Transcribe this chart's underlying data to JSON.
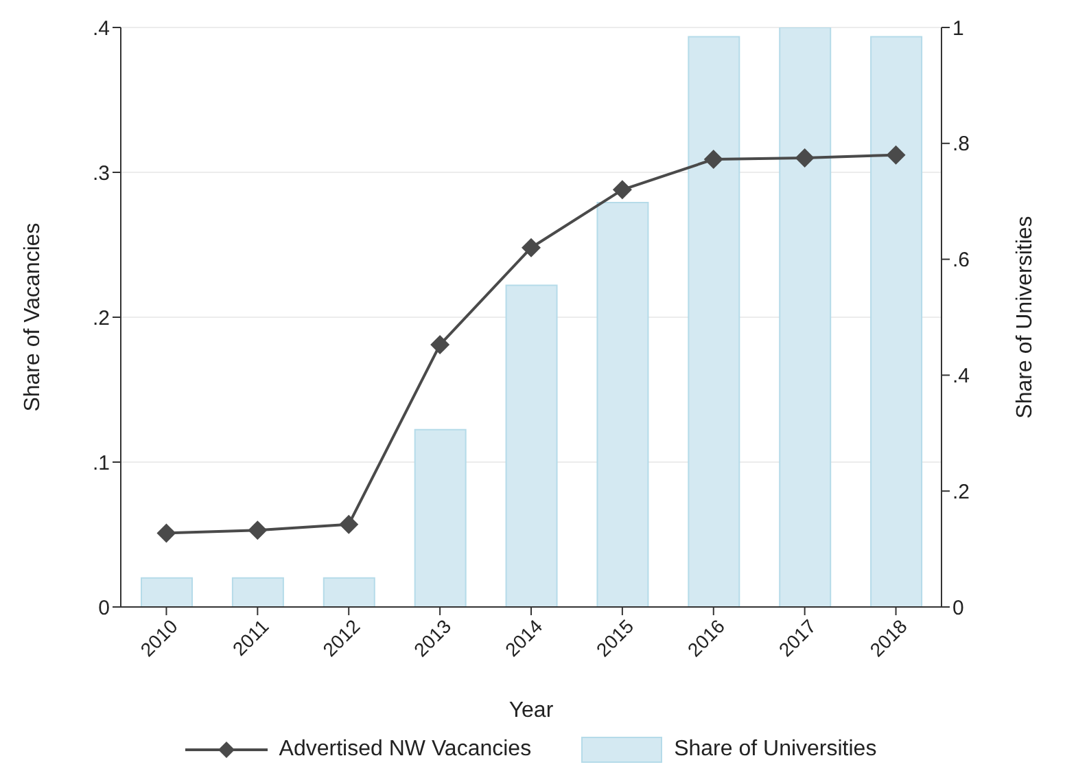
{
  "chart_data": {
    "type": "line",
    "xlabel": "Year",
    "ylabel": "Share of Vacancies",
    "y2label": "Share of Universities",
    "categories": [
      "2010",
      "2011",
      "2012",
      "2013",
      "2014",
      "2015",
      "2016",
      "2017",
      "2018"
    ],
    "series": [
      {
        "name": "Advertised NW Vacancies",
        "color": "#4a4a4a",
        "values": [
          0.051,
          0.053,
          0.057,
          0.181,
          0.248,
          0.288,
          0.309,
          0.31,
          0.312
        ]
      },
      {
        "name": "Share of Universities",
        "type": "bar",
        "axis": "y2",
        "color": "#d4e9f2",
        "values": [
          0.05,
          0.05,
          0.05,
          0.306,
          0.555,
          0.698,
          0.984,
          1.0,
          0.984
        ]
      }
    ],
    "ylim": [
      0,
      0.4
    ],
    "yticks": [
      {
        "value": 0,
        "label": "0"
      },
      {
        "value": 0.1,
        "label": ".1"
      },
      {
        "value": 0.2,
        "label": ".2"
      },
      {
        "value": 0.3,
        "label": ".3"
      },
      {
        "value": 0.4,
        "label": ".4"
      }
    ],
    "y2lim": [
      0,
      1
    ],
    "y2ticks": [
      {
        "value": 0,
        "label": "0"
      },
      {
        "value": 0.2,
        "label": ".2"
      },
      {
        "value": 0.4,
        "label": ".4"
      },
      {
        "value": 0.6,
        "label": ".6"
      },
      {
        "value": 0.8,
        "label": ".8"
      },
      {
        "value": 1,
        "label": "1"
      }
    ],
    "grid": "y",
    "legend": "bottom",
    "marker": "diamond",
    "line_style": "solid"
  }
}
